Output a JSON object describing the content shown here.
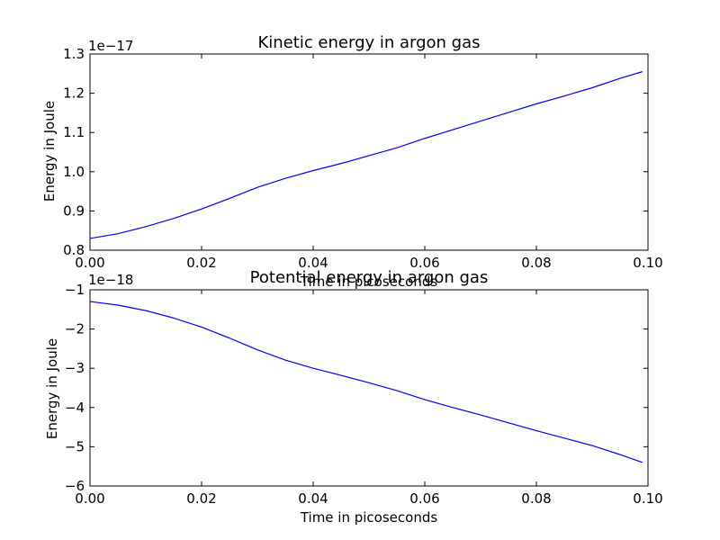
{
  "chart_data": [
    {
      "type": "line",
      "title": "Kinetic energy in argon gas",
      "xlabel": "Time in picoseconds",
      "ylabel": "Energy in Joule",
      "offset_text": "1e−17",
      "xlim": [
        0.0,
        0.1
      ],
      "ylim": [
        0.8,
        1.3
      ],
      "grid": false,
      "color": "#0000ff",
      "x_ticks": [
        "0.00",
        "0.02",
        "0.04",
        "0.06",
        "0.08",
        "0.10"
      ],
      "y_ticks": [
        "0.8",
        "0.9",
        "1.0",
        "1.1",
        "1.2",
        "1.3"
      ],
      "x": [
        0.0,
        0.005,
        0.01,
        0.015,
        0.02,
        0.025,
        0.03,
        0.035,
        0.04,
        0.045,
        0.05,
        0.055,
        0.06,
        0.065,
        0.07,
        0.075,
        0.08,
        0.085,
        0.09,
        0.095,
        0.099
      ],
      "y": [
        0.83,
        0.842,
        0.86,
        0.881,
        0.905,
        0.932,
        0.96,
        0.983,
        1.003,
        1.021,
        1.041,
        1.061,
        1.085,
        1.107,
        1.129,
        1.151,
        1.173,
        1.193,
        1.214,
        1.238,
        1.255
      ]
    },
    {
      "type": "line",
      "title": "Potential energy in argon gas",
      "xlabel": "Time in picoseconds",
      "ylabel": "Energy in Joule",
      "offset_text": "1e−18",
      "xlim": [
        0.0,
        0.1
      ],
      "ylim": [
        -6,
        -1
      ],
      "grid": false,
      "color": "#0000ff",
      "x_ticks": [
        "0.00",
        "0.02",
        "0.04",
        "0.06",
        "0.08",
        "0.10"
      ],
      "y_ticks": [
        "−1",
        "−2",
        "−3",
        "−4",
        "−5",
        "−6"
      ],
      "x": [
        0.0,
        0.005,
        0.01,
        0.015,
        0.02,
        0.025,
        0.03,
        0.035,
        0.04,
        0.045,
        0.05,
        0.055,
        0.06,
        0.065,
        0.07,
        0.075,
        0.08,
        0.085,
        0.09,
        0.095,
        0.099
      ],
      "y": [
        -1.3,
        -1.39,
        -1.53,
        -1.72,
        -1.95,
        -2.23,
        -2.53,
        -2.79,
        -3.0,
        -3.18,
        -3.37,
        -3.57,
        -3.8,
        -4.0,
        -4.19,
        -4.39,
        -4.59,
        -4.78,
        -4.97,
        -5.2,
        -5.4
      ]
    }
  ]
}
